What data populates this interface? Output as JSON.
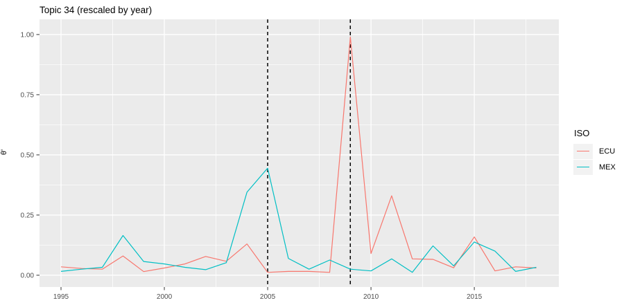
{
  "figure": {
    "title": "Topic 34 (rescaled by year)",
    "y_axis_title": "θ'"
  },
  "legend": {
    "title": "ISO",
    "items": [
      {
        "label": "ECU",
        "color": "#F8766D"
      },
      {
        "label": "MEX",
        "color": "#00BFC4"
      }
    ]
  },
  "colors": {
    "panel_background": "#EBEBEB",
    "gridline": "#FFFFFF",
    "tick_label": "#4D4D4D",
    "tick_mark": "#333333",
    "reference_line": "#000000",
    "ecu_line": "#F8766D",
    "mex_line": "#00BFC4",
    "legend_key_background": "#F2F2F2"
  },
  "chart_data": {
    "type": "line",
    "title": "Topic 34 (rescaled by year)",
    "xlabel": "",
    "ylabel": "θ'",
    "legend_title": "ISO",
    "legend_position": "right",
    "grid": "white major and minor gridlines on gray panel (ggplot2 style)",
    "x": [
      1995,
      1996,
      1997,
      1998,
      1999,
      2000,
      2001,
      2002,
      2003,
      2004,
      2005,
      2006,
      2007,
      2008,
      2009,
      2010,
      2011,
      2012,
      2013,
      2014,
      2015,
      2016,
      2017,
      2018
    ],
    "series": [
      {
        "name": "ECU",
        "color": "#F8766D",
        "values": [
          0.035,
          0.028,
          0.025,
          0.08,
          0.015,
          0.03,
          0.047,
          0.078,
          0.058,
          0.13,
          0.012,
          0.016,
          0.016,
          0.012,
          0.99,
          0.09,
          0.33,
          0.068,
          0.066,
          0.031,
          0.159,
          0.018,
          0.035,
          0.03
        ]
      },
      {
        "name": "MEX",
        "color": "#00BFC4",
        "values": [
          0.016,
          0.025,
          0.033,
          0.165,
          0.057,
          0.047,
          0.033,
          0.023,
          0.052,
          0.345,
          0.445,
          0.07,
          0.025,
          0.063,
          0.025,
          0.018,
          0.068,
          0.012,
          0.122,
          0.039,
          0.138,
          0.1,
          0.016,
          0.033
        ]
      }
    ],
    "vlines": [
      {
        "x": 2005,
        "style": "dashed",
        "color": "#000000"
      },
      {
        "x": 2009,
        "style": "dashed",
        "color": "#000000"
      }
    ],
    "x_ticks": [
      1995,
      2000,
      2005,
      2010,
      2015
    ],
    "x_minor_ticks": [
      1997.5,
      2002.5,
      2007.5,
      2012.5,
      2017.5
    ],
    "y_ticks": [
      {
        "value": 0.0,
        "label": "0.00"
      },
      {
        "value": 0.25,
        "label": "0.25"
      },
      {
        "value": 0.5,
        "label": "0.50"
      },
      {
        "value": 0.75,
        "label": "0.75"
      },
      {
        "value": 1.0,
        "label": "1.00"
      }
    ],
    "y_minor_ticks": [
      0.125,
      0.375,
      0.625,
      0.875
    ],
    "xlim": [
      1993.96,
      2019.09
    ],
    "ylim": [
      -0.049,
      1.063
    ]
  }
}
